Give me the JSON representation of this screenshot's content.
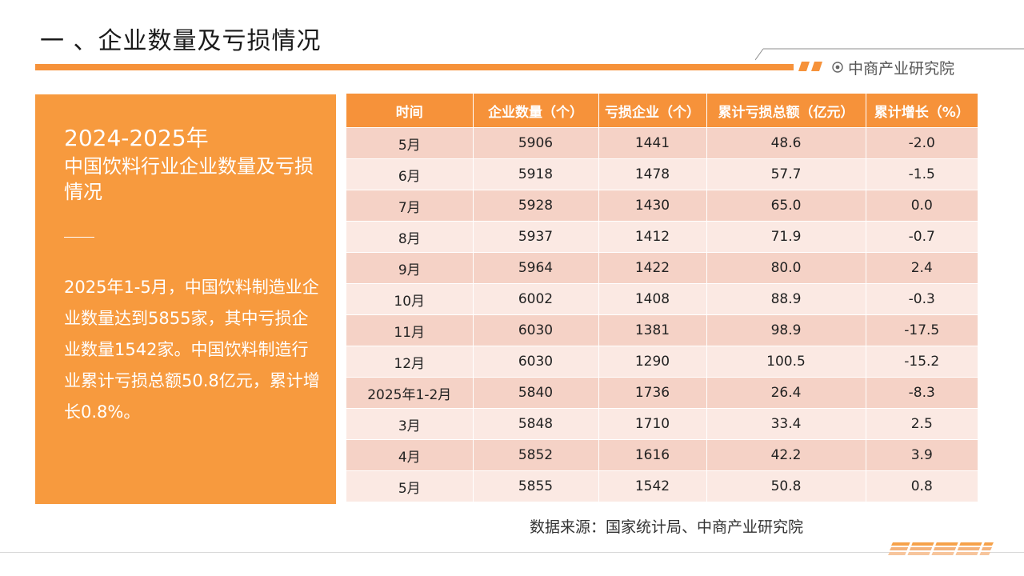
{
  "page": {
    "title": "一 、企业数量及亏损情况",
    "brand": "中商产业研究院",
    "accent_color": "#f6923a"
  },
  "panel": {
    "year": "2024-2025年",
    "heading": "中国饮料行业企业数量及亏损情况",
    "body": "2025年1-5月，中国饮料制造业企业数量达到5855家，其中亏损企业数量1542家。中国饮料制造行业累计亏损总额50.8亿元，累计增长0.8%。",
    "color": "#f79a3e"
  },
  "table": {
    "headers": [
      "时间",
      "企业数量（个）",
      "亏损企业（个）",
      "累计亏损总额（亿元）",
      "累计增长（%）"
    ],
    "rows": [
      [
        "5月",
        "5906",
        "1441",
        "48.6",
        "-2.0"
      ],
      [
        "6月",
        "5918",
        "1478",
        "57.7",
        "-1.5"
      ],
      [
        "7月",
        "5928",
        "1430",
        "65.0",
        "0.0"
      ],
      [
        "8月",
        "5937",
        "1412",
        "71.9",
        "-0.7"
      ],
      [
        "9月",
        "5964",
        "1422",
        "80.0",
        "2.4"
      ],
      [
        "10月",
        "6002",
        "1408",
        "88.9",
        "-0.3"
      ],
      [
        "11月",
        "6030",
        "1381",
        "98.9",
        "-17.5"
      ],
      [
        "12月",
        "6030",
        "1290",
        "100.5",
        "-15.2"
      ],
      [
        "2025年1-2月",
        "5840",
        "1736",
        "26.4",
        "-8.3"
      ],
      [
        "3月",
        "5848",
        "1710",
        "33.4",
        "2.5"
      ],
      [
        "4月",
        "5852",
        "1616",
        "42.2",
        "3.9"
      ],
      [
        "5月",
        "5855",
        "1542",
        "50.8",
        "0.8"
      ]
    ],
    "header_color": "#f6923a",
    "row_colors": [
      "#f5d2c6",
      "#fbe9e3"
    ]
  },
  "source": "数据来源：国家统计局、中商产业研究院"
}
